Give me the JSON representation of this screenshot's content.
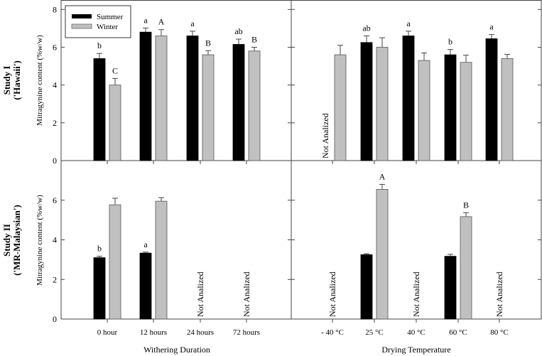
{
  "chart_data": [
    {
      "type": "bar",
      "panel": "top-left",
      "row_label": [
        "Study I",
        "('Hawaii')"
      ],
      "ylabel": "Mitragynine content (%w/w)",
      "ylim": [
        0,
        8.5
      ],
      "yticks": [
        0,
        2,
        4,
        6,
        8
      ],
      "categories": [
        "0 hour",
        "12 hours",
        "24 hours",
        "72 hours"
      ],
      "series": [
        {
          "name": "Summer",
          "color": "#000000",
          "values": [
            5.4,
            6.8,
            6.6,
            6.15
          ],
          "errors": [
            0.27,
            0.22,
            0.25,
            0.28
          ],
          "letters": [
            "b",
            "a",
            "a",
            "ab"
          ]
        },
        {
          "name": "Winter",
          "color": "#c0c0c0",
          "values": [
            4.0,
            6.6,
            5.6,
            5.8
          ],
          "errors": [
            0.35,
            0.33,
            0.22,
            0.2
          ],
          "letters": [
            "C",
            "A",
            "B",
            "B"
          ]
        }
      ],
      "annotations": [],
      "legend": "top-left"
    },
    {
      "type": "bar",
      "panel": "top-right",
      "ylim": [
        0,
        8.5
      ],
      "yticks": [
        0,
        2,
        4,
        6,
        8
      ],
      "categories": [
        "- 40 °C",
        "25 °C",
        "40 °C",
        "60 °C",
        "80 °C"
      ],
      "series": [
        {
          "name": "Summer",
          "color": "#000000",
          "values": [
            null,
            6.25,
            6.6,
            5.6,
            6.45
          ],
          "errors": [
            null,
            0.35,
            0.25,
            0.28,
            0.22
          ],
          "letters": [
            "",
            "ab",
            "a",
            "b",
            "a"
          ]
        },
        {
          "name": "Winter",
          "color": "#c0c0c0",
          "values": [
            5.6,
            6.0,
            5.3,
            5.2,
            5.4
          ],
          "errors": [
            0.5,
            0.5,
            0.4,
            0.38,
            0.22
          ],
          "letters": [
            "",
            "",
            "",
            "",
            ""
          ]
        }
      ],
      "annotations": [
        {
          "category": "- 40 °C",
          "series": "Summer",
          "text": "Not Analized"
        }
      ]
    },
    {
      "type": "bar",
      "panel": "bottom-left",
      "row_label": [
        "Study II",
        "('MR-Malaysian')"
      ],
      "ylabel": "Mitragynine content (%w/w)",
      "xlabel": "Withering Duration",
      "ylim": [
        0,
        8
      ],
      "yticks": [
        0,
        2,
        4,
        6
      ],
      "categories": [
        "0 hour",
        "12 hours",
        "24 hours",
        "72 hours"
      ],
      "series": [
        {
          "name": "Summer",
          "color": "#000000",
          "values": [
            3.1,
            3.33,
            null,
            null
          ],
          "errors": [
            0.07,
            0.05,
            null,
            null
          ],
          "letters": [
            "b",
            "a",
            "",
            ""
          ]
        },
        {
          "name": "Winter",
          "color": "#c0c0c0",
          "values": [
            5.77,
            5.95,
            null,
            null
          ],
          "errors": [
            0.33,
            0.18,
            null,
            null
          ],
          "letters": [
            "",
            "",
            "",
            ""
          ]
        }
      ],
      "annotations": [
        {
          "category": "24 hours",
          "text": "Not Analized"
        },
        {
          "category": "72 hours",
          "text": "Not Analized"
        }
      ]
    },
    {
      "type": "bar",
      "panel": "bottom-right",
      "xlabel": "Drying Temperature",
      "ylim": [
        0,
        8
      ],
      "yticks": [
        0,
        2,
        4,
        6
      ],
      "categories": [
        "- 40 °C",
        "25 °C",
        "40 °C",
        "60 °C",
        "80 °C"
      ],
      "series": [
        {
          "name": "Summer",
          "color": "#000000",
          "values": [
            null,
            3.25,
            null,
            3.17,
            null
          ],
          "errors": [
            null,
            0.05,
            null,
            0.1,
            null
          ],
          "letters": [
            "",
            "",
            "",
            "",
            ""
          ]
        },
        {
          "name": "Winter",
          "color": "#c0c0c0",
          "values": [
            null,
            6.55,
            null,
            5.17,
            null
          ],
          "errors": [
            null,
            0.25,
            null,
            0.2,
            null
          ],
          "letters": [
            "",
            "A",
            "",
            "B",
            ""
          ]
        }
      ],
      "annotations": [
        {
          "category": "- 40 °C",
          "text": "Not Analized"
        },
        {
          "category": "40 °C",
          "text": "Not Analized"
        },
        {
          "category": "80 °C",
          "text": "Not Analized"
        }
      ]
    }
  ],
  "legend": {
    "items": [
      {
        "label": "Summer",
        "color": "#000000"
      },
      {
        "label": "Winter",
        "color": "#c0c0c0"
      }
    ]
  }
}
